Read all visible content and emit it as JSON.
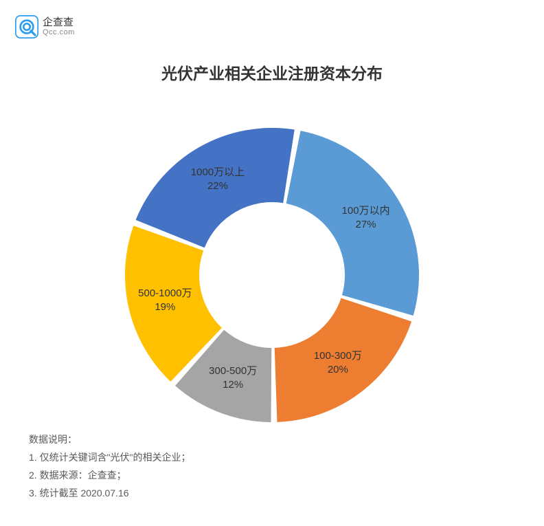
{
  "logo": {
    "cn": "企查查",
    "en": "Qcc.com",
    "icon_color": "#2f9cf0",
    "icon_bg": "#ffffff"
  },
  "chart": {
    "type": "donut",
    "title": "光伏产业相关企业注册资本分布",
    "title_fontsize": 23,
    "title_color": "#333333",
    "label_fontsize": 15,
    "label_color": "#333333",
    "background_color": "#ffffff",
    "outer_radius": 214,
    "inner_radius": 106,
    "gap_deg": 2.4,
    "start_angle_deg": -80,
    "slices": [
      {
        "label": "100万以内",
        "percent": 27,
        "color": "#5b9bd5"
      },
      {
        "label": "100-300万",
        "percent": 20,
        "color": "#ed7d31"
      },
      {
        "label": "300-500万",
        "percent": 12,
        "color": "#a5a5a5"
      },
      {
        "label": "500-1000万",
        "percent": 19,
        "color": "#ffc000"
      },
      {
        "label": "1000万以上",
        "percent": 22,
        "color": "#4472c4"
      }
    ]
  },
  "notes": {
    "heading": "数据说明：",
    "items": [
      "1. 仅统计关键词含\"光伏\"的相关企业；",
      "2. 数据来源：企查查；",
      "3. 统计截至 2020.07.16"
    ],
    "fontsize": 14,
    "color": "#595959"
  }
}
